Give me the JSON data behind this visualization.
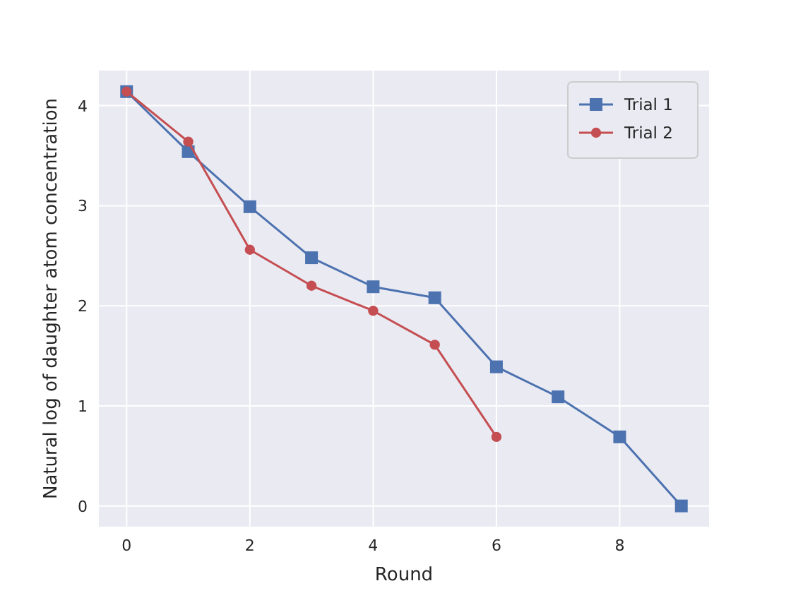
{
  "chart_data": {
    "type": "line",
    "xlabel": "Round",
    "ylabel": "Natural log of daughter atom concentration",
    "xlim": [
      -0.45,
      9.45
    ],
    "ylim": [
      -0.207,
      4.35
    ],
    "xticks": [
      0,
      2,
      4,
      6,
      8
    ],
    "yticks": [
      0,
      1,
      2,
      3,
      4
    ],
    "grid": true,
    "legend": "top right",
    "series": [
      {
        "name": "Trial 1",
        "color": "#4c72b0",
        "marker": "square",
        "x": [
          0,
          1,
          2,
          3,
          4,
          5,
          6,
          7,
          8,
          9
        ],
        "values": [
          4.14,
          3.54,
          2.99,
          2.48,
          2.19,
          2.08,
          1.39,
          1.09,
          0.69,
          0
        ]
      },
      {
        "name": "Trial 2",
        "color": "#c44e52",
        "marker": "circle",
        "x": [
          0,
          1,
          2,
          3,
          4,
          5,
          6
        ],
        "values": [
          4.14,
          3.64,
          2.56,
          2.2,
          1.95,
          1.61,
          0.69
        ]
      }
    ]
  }
}
